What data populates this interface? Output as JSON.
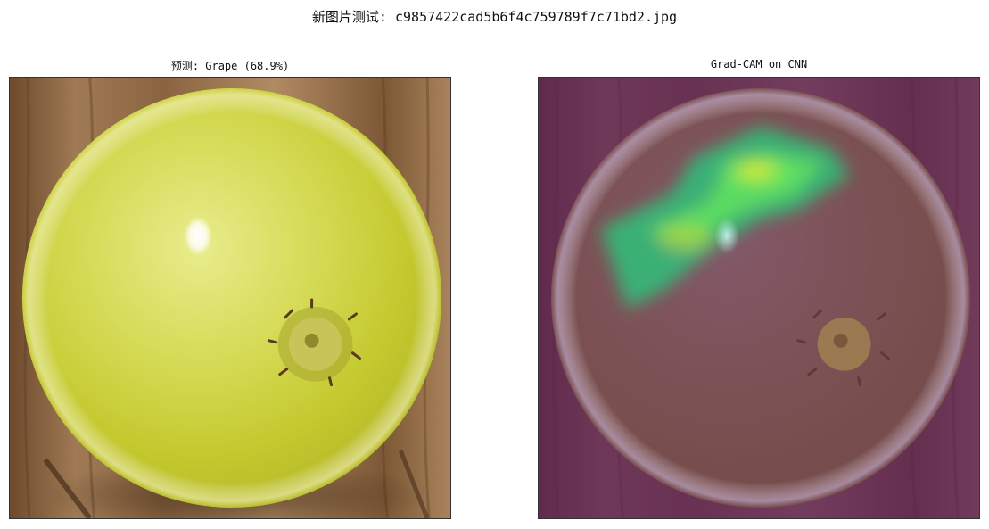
{
  "figure": {
    "suptitle": "新图片测试: c9857422cad5b6f4c759789f7c71bd2.jpg"
  },
  "panels": [
    {
      "title": "预测: Grape (68.9%)",
      "image": "green-grape-photo"
    },
    {
      "title": "Grad-CAM on CNN",
      "image": "grad-cam-heatmap-overlay"
    }
  ],
  "colors": {
    "grape": "#c9d23a",
    "wood": "#8a6440",
    "cam_overlay": "#5c1f5a",
    "cam_hot": "#ffe82a",
    "cam_mid": "#3ee07a"
  }
}
